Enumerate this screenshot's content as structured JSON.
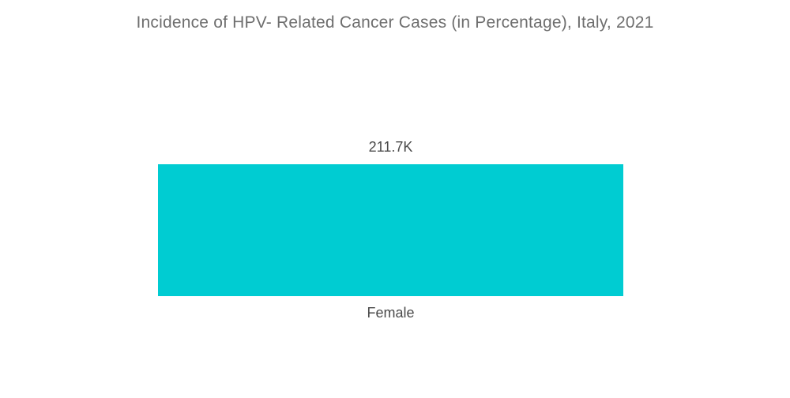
{
  "page": {
    "background_color": "#FFFFFF"
  },
  "chart_data": {
    "type": "bar",
    "title": "Incidence of HPV- Related Cancer Cases (in Percentage), Italy, 2021",
    "categories": [
      "Female"
    ],
    "values": [
      211700
    ],
    "value_labels": [
      "211.7K"
    ],
    "xlabel": "",
    "ylabel": "",
    "legend": "none",
    "grid": false,
    "axes": "hidden",
    "orientation": "vertical",
    "bar_color": "#00CCD2",
    "title_color": "#6E6E6E",
    "label_color": "#4A4A4A"
  }
}
